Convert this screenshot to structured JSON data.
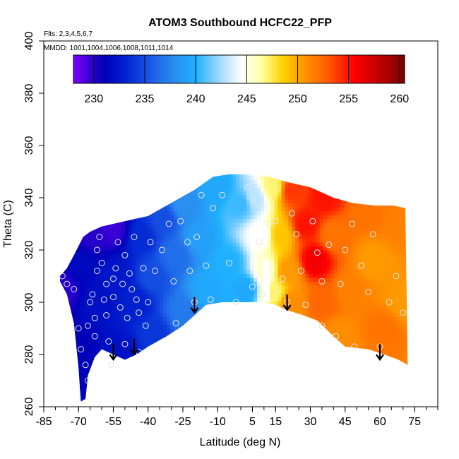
{
  "chart_data": {
    "type": "heatmap",
    "title": "ATOM3 Southbound HCFC22_PFP",
    "subtitle_flights": "Flts: 2,3,4,5,6,7",
    "subtitle_dates": "MMDD: 1001,1004,1006,1008,1011,1014",
    "xlabel": "Latitude (deg N)",
    "ylabel": "Theta (C)",
    "xlim": [
      -85,
      85
    ],
    "ylim": [
      260,
      400
    ],
    "x_ticks": [
      -85,
      -70,
      -55,
      -40,
      -25,
      -10,
      5,
      15,
      30,
      45,
      60,
      75
    ],
    "x_tick_labels": [
      "-85",
      "-70",
      "-55",
      "-40",
      "-25",
      "-10",
      "5",
      "15",
      "30",
      "45",
      "60",
      "75"
    ],
    "x_minor_step": 5,
    "y_ticks": [
      260,
      280,
      300,
      320,
      340,
      360,
      380,
      400
    ],
    "y_tick_labels": [
      "260",
      "280",
      "300",
      "320",
      "340",
      "360",
      "380",
      "400"
    ],
    "colorbar": {
      "range": [
        228,
        260.5
      ],
      "ticks": [
        230,
        235,
        240,
        245,
        250,
        255,
        260
      ],
      "tick_labels": [
        "230",
        "235",
        "240",
        "245",
        "250",
        "255",
        "260"
      ],
      "stops": [
        {
          "v": 228,
          "c": "#7f00ff"
        },
        {
          "v": 229.5,
          "c": "#3a00d8"
        },
        {
          "v": 231,
          "c": "#0000b8"
        },
        {
          "v": 233,
          "c": "#0020d0"
        },
        {
          "v": 235.5,
          "c": "#1a5ae6"
        },
        {
          "v": 238,
          "c": "#2a8ff0"
        },
        {
          "v": 240,
          "c": "#1fb0ff"
        },
        {
          "v": 242.5,
          "c": "#a8dcff"
        },
        {
          "v": 244.5,
          "c": "#ffffff"
        },
        {
          "v": 246.5,
          "c": "#ffffa0"
        },
        {
          "v": 248.5,
          "c": "#ffd400"
        },
        {
          "v": 250.5,
          "c": "#ff9a00"
        },
        {
          "v": 253,
          "c": "#ff5a00"
        },
        {
          "v": 255.5,
          "c": "#ff0000"
        },
        {
          "v": 258,
          "c": "#c00000"
        },
        {
          "v": 260.5,
          "c": "#7a0000"
        }
      ]
    },
    "field_anchors": [
      {
        "lat": -76,
        "theta": 305,
        "value": 230
      },
      {
        "lat": -71,
        "theta": 285,
        "value": 231
      },
      {
        "lat": -69,
        "theta": 315,
        "value": 231.5
      },
      {
        "lat": -67,
        "theta": 265,
        "value": 231
      },
      {
        "lat": -64,
        "theta": 326,
        "value": 230
      },
      {
        "lat": -62,
        "theta": 300,
        "value": 232
      },
      {
        "lat": -55,
        "theta": 328,
        "value": 229.5
      },
      {
        "lat": -53,
        "theta": 310,
        "value": 232.5
      },
      {
        "lat": -52,
        "theta": 280,
        "value": 232
      },
      {
        "lat": -45,
        "theta": 300,
        "value": 233
      },
      {
        "lat": -43,
        "theta": 325,
        "value": 233.5
      },
      {
        "lat": -38,
        "theta": 310,
        "value": 235
      },
      {
        "lat": -37,
        "theta": 288,
        "value": 234
      },
      {
        "lat": -33,
        "theta": 332,
        "value": 235
      },
      {
        "lat": -28,
        "theta": 318,
        "value": 236.5
      },
      {
        "lat": -25,
        "theta": 337,
        "value": 238
      },
      {
        "lat": -25,
        "theta": 296,
        "value": 237
      },
      {
        "lat": -18,
        "theta": 325,
        "value": 239
      },
      {
        "lat": -15,
        "theta": 305,
        "value": 239.5
      },
      {
        "lat": -10,
        "theta": 344,
        "value": 239.5
      },
      {
        "lat": -5,
        "theta": 315,
        "value": 240
      },
      {
        "lat": 0,
        "theta": 338,
        "value": 240.5
      },
      {
        "lat": 2,
        "theta": 305,
        "value": 239.5
      },
      {
        "lat": 6,
        "theta": 340,
        "value": 243
      },
      {
        "lat": 9,
        "theta": 326,
        "value": 244.5
      },
      {
        "lat": 11,
        "theta": 312,
        "value": 245.5
      },
      {
        "lat": 14,
        "theta": 304,
        "value": 247
      },
      {
        "lat": 14,
        "theta": 344,
        "value": 247
      },
      {
        "lat": 17,
        "theta": 326,
        "value": 249
      },
      {
        "lat": 20,
        "theta": 312,
        "value": 250.5
      },
      {
        "lat": 22,
        "theta": 343,
        "value": 254
      },
      {
        "lat": 22,
        "theta": 300,
        "value": 251
      },
      {
        "lat": 28,
        "theta": 330,
        "value": 255
      },
      {
        "lat": 32,
        "theta": 316,
        "value": 256
      },
      {
        "lat": 35,
        "theta": 300,
        "value": 252.5
      },
      {
        "lat": 36,
        "theta": 340,
        "value": 255
      },
      {
        "lat": 40,
        "theta": 326,
        "value": 252
      },
      {
        "lat": 42,
        "theta": 287,
        "value": 251
      },
      {
        "lat": 48,
        "theta": 305,
        "value": 251.5
      },
      {
        "lat": 55,
        "theta": 334,
        "value": 252
      },
      {
        "lat": 57,
        "theta": 316,
        "value": 250.5
      },
      {
        "lat": 62,
        "theta": 290,
        "value": 252
      },
      {
        "lat": 68,
        "theta": 330,
        "value": 251.5
      },
      {
        "lat": 70,
        "theta": 300,
        "value": 250.5
      }
    ],
    "domain_top": [
      [
        -78,
        310
      ],
      [
        -75,
        313
      ],
      [
        -72,
        318
      ],
      [
        -68,
        325
      ],
      [
        -65,
        327
      ],
      [
        -60,
        329
      ],
      [
        -50,
        331
      ],
      [
        -40,
        333
      ],
      [
        -30,
        338
      ],
      [
        -20,
        343
      ],
      [
        -12,
        348
      ],
      [
        -5,
        349
      ],
      [
        5,
        349
      ],
      [
        12,
        348
      ],
      [
        20,
        346
      ],
      [
        30,
        344
      ],
      [
        40,
        340
      ],
      [
        48,
        338
      ],
      [
        58,
        337
      ],
      [
        66,
        337
      ],
      [
        71,
        336
      ]
    ],
    "domain_bottom": [
      [
        -78,
        308
      ],
      [
        -75,
        303
      ],
      [
        -72,
        292
      ],
      [
        -70,
        275
      ],
      [
        -69,
        262
      ],
      [
        -67,
        263
      ],
      [
        -66,
        272
      ],
      [
        -63,
        279
      ],
      [
        -60,
        282
      ],
      [
        -55,
        280
      ],
      [
        -50,
        278
      ],
      [
        -45,
        280
      ],
      [
        -40,
        283
      ],
      [
        -32,
        287
      ],
      [
        -25,
        291
      ],
      [
        -20,
        295
      ],
      [
        -15,
        299
      ],
      [
        -8,
        300
      ],
      [
        0,
        300
      ],
      [
        10,
        300
      ],
      [
        15,
        299
      ],
      [
        20,
        297
      ],
      [
        27,
        295
      ],
      [
        33,
        293
      ],
      [
        40,
        287
      ],
      [
        45,
        283
      ],
      [
        55,
        282
      ],
      [
        62,
        280
      ],
      [
        68,
        278
      ],
      [
        72,
        276
      ]
    ],
    "masked_strip": {
      "lat0": 9.5,
      "lat1": 12.5,
      "theta0": 300,
      "theta1": 316
    },
    "observation_points": [
      [
        -77,
        310
      ],
      [
        -75,
        307
      ],
      [
        -72,
        305
      ],
      [
        -70,
        290
      ],
      [
        -69,
        282
      ],
      [
        -67,
        276
      ],
      [
        -66,
        270
      ],
      [
        -66,
        291
      ],
      [
        -65,
        300
      ],
      [
        -64,
        303
      ],
      [
        -63,
        287
      ],
      [
        -63,
        294
      ],
      [
        -62,
        312
      ],
      [
        -62,
        320
      ],
      [
        -61,
        325
      ],
      [
        -60,
        315
      ],
      [
        -59,
        301
      ],
      [
        -58,
        307
      ],
      [
        -58,
        295
      ],
      [
        -57,
        285
      ],
      [
        -56,
        276
      ],
      [
        -55,
        302
      ],
      [
        -55,
        309
      ],
      [
        -54,
        313
      ],
      [
        -53,
        323
      ],
      [
        -52,
        298
      ],
      [
        -51,
        307
      ],
      [
        -50,
        318
      ],
      [
        -50,
        284
      ],
      [
        -49,
        294
      ],
      [
        -48,
        311
      ],
      [
        -47,
        305
      ],
      [
        -46,
        325
      ],
      [
        -45,
        301
      ],
      [
        -44,
        296
      ],
      [
        -44,
        281
      ],
      [
        -42,
        313
      ],
      [
        -41,
        291
      ],
      [
        -40,
        300
      ],
      [
        -39,
        323
      ],
      [
        -37,
        312
      ],
      [
        -34,
        320
      ],
      [
        -31,
        330
      ],
      [
        -29,
        308
      ],
      [
        -28,
        292
      ],
      [
        -26,
        331
      ],
      [
        -23,
        323
      ],
      [
        -22,
        312
      ],
      [
        -20,
        300
      ],
      [
        -19,
        325
      ],
      [
        -17,
        341
      ],
      [
        -15,
        314
      ],
      [
        -13,
        301
      ],
      [
        -12,
        336
      ],
      [
        -8,
        341
      ],
      [
        -5,
        315
      ],
      [
        -2,
        300
      ],
      [
        3,
        344
      ],
      [
        5,
        306
      ],
      [
        8,
        323
      ],
      [
        9,
        303
      ],
      [
        12,
        330
      ],
      [
        15,
        331
      ],
      [
        18,
        309
      ],
      [
        20,
        300
      ],
      [
        22,
        334
      ],
      [
        24,
        326
      ],
      [
        26,
        312
      ],
      [
        28,
        299
      ],
      [
        31,
        331
      ],
      [
        33,
        319
      ],
      [
        35,
        308
      ],
      [
        35,
        291
      ],
      [
        38,
        322
      ],
      [
        41,
        287
      ],
      [
        43,
        307
      ],
      [
        45,
        320
      ],
      [
        48,
        330
      ],
      [
        49,
        283
      ],
      [
        52,
        314
      ],
      [
        55,
        304
      ],
      [
        57,
        326
      ],
      [
        60,
        283
      ],
      [
        64,
        300
      ],
      [
        67,
        310
      ],
      [
        70,
        296
      ]
    ],
    "arrows": [
      {
        "lat": -55,
        "theta": 284
      },
      {
        "lat": -46,
        "theta": 286
      },
      {
        "lat": -20,
        "theta": 302
      },
      {
        "lat": 20,
        "theta": 303
      },
      {
        "lat": 60,
        "theta": 284
      }
    ],
    "grid": false,
    "legend_position": "top"
  }
}
